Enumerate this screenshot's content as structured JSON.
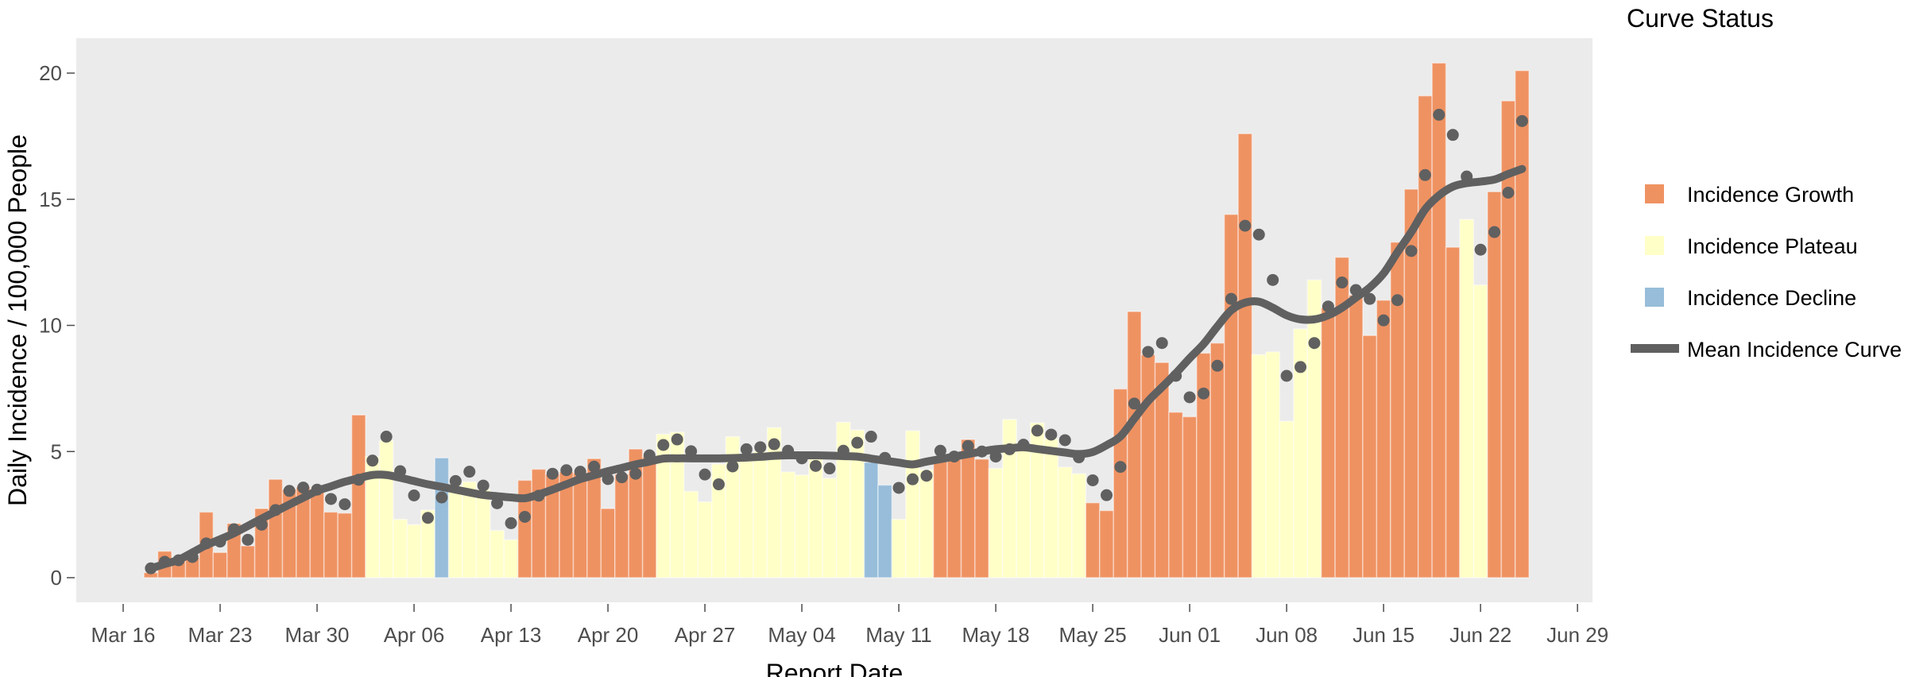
{
  "chart_data": {
    "type": "bar",
    "title": "",
    "xlabel": "Report Date",
    "ylabel": "Daily Incidence / 100,000 People",
    "ylim": [
      -1.1,
      21.3
    ],
    "xlim": [
      "Mar 12",
      "Jul 01"
    ],
    "grid": false,
    "background": "#EBEBEB",
    "legend": {
      "title": "Curve Status",
      "position": "right",
      "entries": [
        {
          "key": "G",
          "label": "Incidence Growth",
          "color": "#EF9262",
          "shape": "square"
        },
        {
          "key": "P",
          "label": "Incidence Plateau",
          "color": "#FFFFC8",
          "shape": "square"
        },
        {
          "key": "D",
          "label": "Incidence Decline",
          "color": "#97BDDA",
          "shape": "square"
        },
        {
          "key": "mean",
          "label": "Mean Incidence Curve",
          "color": "#606060",
          "shape": "line"
        }
      ]
    },
    "y_ticks": [
      "0",
      "5",
      "10",
      "15",
      "20"
    ],
    "x_ticks": [
      "Mar 16",
      "Mar 23",
      "Mar 30",
      "Apr 06",
      "Apr 13",
      "Apr 20",
      "Apr 27",
      "May 04",
      "May 11",
      "May 18",
      "May 25",
      "Jun 01",
      "Jun 08",
      "Jun 15",
      "Jun 22",
      "Jun 29"
    ],
    "x": [
      "Mar 18",
      "Mar 19",
      "Mar 20",
      "Mar 21",
      "Mar 22",
      "Mar 23",
      "Mar 24",
      "Mar 25",
      "Mar 26",
      "Mar 27",
      "Mar 28",
      "Mar 29",
      "Mar 30",
      "Mar 31",
      "Apr 01",
      "Apr 02",
      "Apr 03",
      "Apr 04",
      "Apr 05",
      "Apr 06",
      "Apr 07",
      "Apr 08",
      "Apr 09",
      "Apr 10",
      "Apr 11",
      "Apr 12",
      "Apr 13",
      "Apr 14",
      "Apr 15",
      "Apr 16",
      "Apr 17",
      "Apr 18",
      "Apr 19",
      "Apr 20",
      "Apr 21",
      "Apr 22",
      "Apr 23",
      "Apr 24",
      "Apr 25",
      "Apr 26",
      "Apr 27",
      "Apr 28",
      "Apr 29",
      "Apr 30",
      "May 01",
      "May 02",
      "May 03",
      "May 04",
      "May 05",
      "May 06",
      "May 07",
      "May 08",
      "May 09",
      "May 10",
      "May 11",
      "May 12",
      "May 13",
      "May 14",
      "May 15",
      "May 16",
      "May 17",
      "May 18",
      "May 19",
      "May 20",
      "May 21",
      "May 22",
      "May 23",
      "May 24",
      "May 25",
      "May 26",
      "May 27",
      "May 28",
      "May 29",
      "May 30",
      "May 31",
      "Jun 01",
      "Jun 02",
      "Jun 03",
      "Jun 04",
      "Jun 05",
      "Jun 06",
      "Jun 07",
      "Jun 08",
      "Jun 09",
      "Jun 10",
      "Jun 11",
      "Jun 12",
      "Jun 13",
      "Jun 14",
      "Jun 15",
      "Jun 16",
      "Jun 17",
      "Jun 18",
      "Jun 19",
      "Jun 20",
      "Jun 21",
      "Jun 22",
      "Jun 23",
      "Jun 24",
      "Jun 25"
    ],
    "bars": [
      0.2,
      1.05,
      0.7,
      0.8,
      2.6,
      1.0,
      2.15,
      1.26,
      2.74,
      3.9,
      3.5,
      3.6,
      3.5,
      2.6,
      2.56,
      6.45,
      4.8,
      5.43,
      2.31,
      2.1,
      2.68,
      4.75,
      3.65,
      3.8,
      3.5,
      1.87,
      1.5,
      3.86,
      4.3,
      4.1,
      4.2,
      4.15,
      4.72,
      2.74,
      4.1,
      5.1,
      4.8,
      5.69,
      5.77,
      3.42,
      3.0,
      4.5,
      5.59,
      4.7,
      5.0,
      5.95,
      4.19,
      4.07,
      4.7,
      3.94,
      6.16,
      5.85,
      4.57,
      3.67,
      2.31,
      5.82,
      4.28,
      4.8,
      4.7,
      5.48,
      4.7,
      4.33,
      6.27,
      5.2,
      6.14,
      5.5,
      4.38,
      4.12,
      2.97,
      2.66,
      7.48,
      10.55,
      8.84,
      8.53,
      6.56,
      6.38,
      8.9,
      9.3,
      14.4,
      17.6,
      8.84,
      8.95,
      6.2,
      9.86,
      11.8,
      10.7,
      12.7,
      11.2,
      9.6,
      11.0,
      13.3,
      15.4,
      19.1,
      20.4,
      13.1,
      14.2,
      11.6,
      15.3,
      18.9,
      20.1
    ],
    "status": [
      "G",
      "G",
      "G",
      "G",
      "G",
      "G",
      "G",
      "G",
      "G",
      "G",
      "G",
      "G",
      "G",
      "G",
      "G",
      "G",
      "P",
      "P",
      "P",
      "P",
      "P",
      "D",
      "P",
      "P",
      "P",
      "P",
      "P",
      "G",
      "G",
      "G",
      "G",
      "G",
      "G",
      "G",
      "G",
      "G",
      "G",
      "P",
      "P",
      "P",
      "P",
      "P",
      "P",
      "P",
      "P",
      "P",
      "P",
      "P",
      "P",
      "P",
      "P",
      "P",
      "D",
      "D",
      "P",
      "P",
      "P",
      "G",
      "G",
      "G",
      "G",
      "P",
      "P",
      "P",
      "P",
      "P",
      "P",
      "P",
      "G",
      "G",
      "G",
      "G",
      "G",
      "G",
      "G",
      "G",
      "G",
      "G",
      "G",
      "G",
      "P",
      "P",
      "P",
      "P",
      "P",
      "G",
      "G",
      "G",
      "G",
      "G",
      "G",
      "G",
      "G",
      "G",
      "G",
      "P",
      "P",
      "G",
      "G",
      "G"
    ],
    "points": [
      0.37,
      0.63,
      0.69,
      0.82,
      1.36,
      1.43,
      1.92,
      1.5,
      2.1,
      2.68,
      3.44,
      3.57,
      3.49,
      3.12,
      2.91,
      3.88,
      4.64,
      5.59,
      4.22,
      3.26,
      2.37,
      3.18,
      3.83,
      4.2,
      3.65,
      2.95,
      2.16,
      2.41,
      3.25,
      4.12,
      4.26,
      4.2,
      4.4,
      3.91,
      3.98,
      4.12,
      4.85,
      5.26,
      5.48,
      5.01,
      4.09,
      3.7,
      4.41,
      5.09,
      5.17,
      5.29,
      5.03,
      4.73,
      4.43,
      4.33,
      5.03,
      5.35,
      5.59,
      4.75,
      3.56,
      3.9,
      4.04,
      5.03,
      4.8,
      5.22,
      5.0,
      4.8,
      5.09,
      5.27,
      5.83,
      5.67,
      5.45,
      4.77,
      3.86,
      3.27,
      4.39,
      6.9,
      8.95,
      9.3,
      8.0,
      7.15,
      7.3,
      8.4,
      11.05,
      13.95,
      13.6,
      11.8,
      8.0,
      8.35,
      9.3,
      10.75,
      11.7,
      11.4,
      11.05,
      10.2,
      11.0,
      12.95,
      15.96,
      18.35,
      17.55,
      15.9,
      13.0,
      13.7,
      15.26,
      18.1
    ],
    "mean_curve": [
      0.37,
      0.54,
      0.71,
      1.0,
      1.29,
      1.52,
      1.76,
      2.05,
      2.34,
      2.62,
      2.9,
      3.17,
      3.44,
      3.62,
      3.8,
      3.94,
      4.07,
      4.07,
      3.96,
      3.83,
      3.7,
      3.6,
      3.49,
      3.38,
      3.28,
      3.23,
      3.18,
      3.15,
      3.3,
      3.49,
      3.7,
      3.91,
      4.06,
      4.22,
      4.35,
      4.49,
      4.6,
      4.72,
      4.73,
      4.73,
      4.73,
      4.73,
      4.74,
      4.76,
      4.79,
      4.83,
      4.85,
      4.85,
      4.85,
      4.84,
      4.82,
      4.8,
      4.72,
      4.64,
      4.56,
      4.49,
      4.6,
      4.7,
      4.8,
      4.9,
      5.0,
      5.09,
      5.13,
      5.17,
      5.1,
      5.03,
      4.96,
      4.9,
      4.98,
      5.25,
      5.6,
      6.3,
      7.0,
      7.55,
      8.1,
      8.7,
      9.26,
      9.96,
      10.6,
      10.9,
      10.94,
      10.7,
      10.4,
      10.24,
      10.24,
      10.4,
      10.7,
      11.1,
      11.5,
      12.06,
      12.9,
      13.7,
      14.6,
      15.15,
      15.5,
      15.64,
      15.7,
      15.78,
      16.0,
      16.2
    ],
    "point_color": "#606060"
  }
}
